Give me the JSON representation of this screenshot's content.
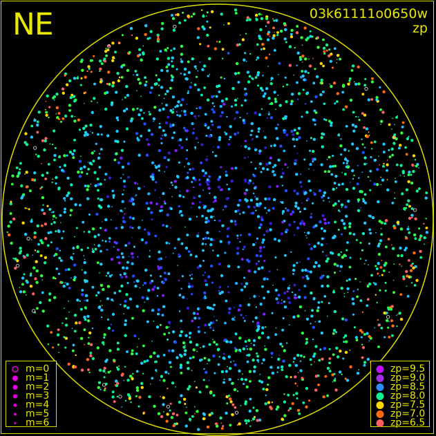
{
  "title_left": "NE",
  "frame_id": "03k61111o0650w",
  "quantity": "zp",
  "chart_data": {
    "type": "scatter",
    "projection": "all-sky polar",
    "grid": false,
    "horizon_circle_color": "#e0e000",
    "color_by": "zp",
    "size_by": "m",
    "size_legend": {
      "placement": "bottom-left",
      "entries": [
        {
          "label": "m=0",
          "m": 0,
          "style": "open"
        },
        {
          "label": "m=1",
          "m": 1
        },
        {
          "label": "m=2",
          "m": 2
        },
        {
          "label": "m=3",
          "m": 3
        },
        {
          "label": "m=4",
          "m": 4
        },
        {
          "label": "m=5",
          "m": 5
        },
        {
          "label": "m=6",
          "m": 6
        }
      ]
    },
    "color_legend": {
      "placement": "bottom-right",
      "entries": [
        {
          "label": "zp=9.5",
          "zp": 9.5,
          "color": "#c010ff"
        },
        {
          "label": "zp=9.0",
          "zp": 9.0,
          "color": "#a030e8"
        },
        {
          "label": "zp=8.5",
          "zp": 8.5,
          "color": "#2a8cff"
        },
        {
          "label": "zp=8.0",
          "zp": 8.0,
          "color": "#10f090"
        },
        {
          "label": "zp=7.5",
          "zp": 7.5,
          "color": "#ffd800"
        },
        {
          "label": "zp=7.0",
          "zp": 7.0,
          "color": "#ff6a10"
        },
        {
          "label": "zp=6.5",
          "zp": 6.5,
          "color": "#ff6060"
        }
      ]
    }
  }
}
